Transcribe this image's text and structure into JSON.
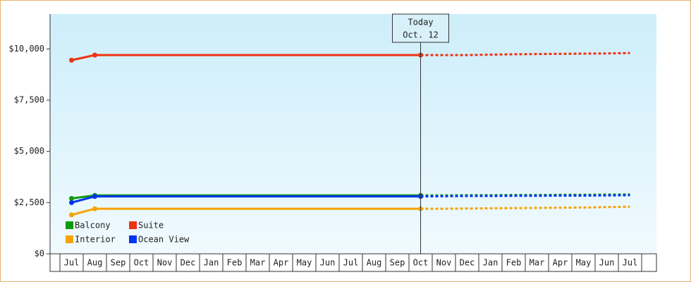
{
  "chart_data": {
    "type": "line",
    "categories": [
      "Jul",
      "Aug",
      "Sep",
      "Oct",
      "Nov",
      "Dec",
      "Jan",
      "Feb",
      "Mar",
      "Apr",
      "May",
      "Jun",
      "Jul",
      "Aug",
      "Sep",
      "Oct",
      "Nov",
      "Dec",
      "Jan",
      "Feb",
      "Mar",
      "Apr",
      "May",
      "Jun",
      "Jul"
    ],
    "series": [
      {
        "name": "Balcony",
        "color": "#119911",
        "values": [
          2700,
          2850,
          2850,
          2850,
          2850,
          2850,
          2850,
          2850,
          2850,
          2850,
          2850,
          2850,
          2850,
          2850,
          2850,
          2850,
          null,
          null,
          null,
          null,
          null,
          null,
          null,
          null,
          null
        ],
        "forecast": [
          null,
          null,
          null,
          null,
          null,
          null,
          null,
          null,
          null,
          null,
          null,
          null,
          null,
          null,
          null,
          2850,
          2850,
          2860,
          2860,
          2870,
          2870,
          2880,
          2880,
          2890,
          2900
        ]
      },
      {
        "name": "Suite",
        "color": "#ee3311",
        "values": [
          9450,
          9700,
          9700,
          9700,
          9700,
          9700,
          9700,
          9700,
          9700,
          9700,
          9700,
          9700,
          9700,
          9700,
          9700,
          9700,
          null,
          null,
          null,
          null,
          null,
          null,
          null,
          null,
          null
        ],
        "forecast": [
          null,
          null,
          null,
          null,
          null,
          null,
          null,
          null,
          null,
          null,
          null,
          null,
          null,
          null,
          null,
          9700,
          9700,
          9700,
          9720,
          9740,
          9750,
          9760,
          9770,
          9780,
          9800
        ]
      },
      {
        "name": "Interior",
        "color": "#f5a300",
        "values": [
          1900,
          2200,
          2200,
          2200,
          2200,
          2200,
          2200,
          2200,
          2200,
          2200,
          2200,
          2200,
          2200,
          2200,
          2200,
          2200,
          null,
          null,
          null,
          null,
          null,
          null,
          null,
          null,
          null
        ],
        "forecast": [
          null,
          null,
          null,
          null,
          null,
          null,
          null,
          null,
          null,
          null,
          null,
          null,
          null,
          null,
          null,
          2200,
          2200,
          2210,
          2220,
          2230,
          2240,
          2250,
          2260,
          2280,
          2300
        ]
      },
      {
        "name": "Ocean View",
        "color": "#0033ee",
        "values": [
          2500,
          2800,
          2800,
          2800,
          2800,
          2800,
          2800,
          2800,
          2800,
          2800,
          2800,
          2800,
          2800,
          2800,
          2800,
          2800,
          null,
          null,
          null,
          null,
          null,
          null,
          null,
          null,
          null
        ],
        "forecast": [
          null,
          null,
          null,
          null,
          null,
          null,
          null,
          null,
          null,
          null,
          null,
          null,
          null,
          null,
          null,
          2800,
          2810,
          2820,
          2820,
          2830,
          2830,
          2840,
          2840,
          2850,
          2860
        ]
      }
    ],
    "annotation": [
      "Today",
      "Oct. 12"
    ],
    "ylim": [
      0,
      11700
    ],
    "yticks": [
      {
        "value": 0,
        "label": "$0"
      },
      {
        "value": 2500,
        "label": "$2,500"
      },
      {
        "value": 5000,
        "label": "$5,000"
      },
      {
        "value": 7500,
        "label": "$7,500"
      },
      {
        "value": 10000,
        "label": "$10,000"
      }
    ]
  }
}
